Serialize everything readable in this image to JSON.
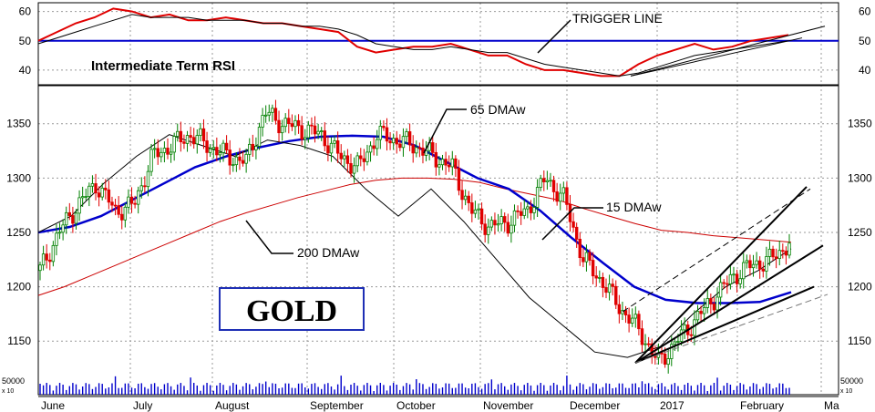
{
  "chart_data": [
    {
      "type": "line",
      "title": "Intermediate Term RSI",
      "ylim": [
        35,
        63
      ],
      "y_ticks": [
        "60",
        "50",
        "40"
      ],
      "reference_line": 50,
      "annotation": "TRIGGER LINE",
      "colors": {
        "rsi": "#e00000",
        "trigger": "#000000",
        "reference": "#0000cc"
      },
      "series": [
        {
          "name": "RSI",
          "key": "rsi",
          "values": [
            50,
            53,
            56,
            58,
            61,
            60,
            58,
            59,
            57,
            57,
            58,
            57,
            56,
            56,
            55,
            54,
            53,
            48,
            46,
            47,
            48,
            48,
            49,
            47,
            45,
            45,
            42,
            40,
            40,
            39,
            38,
            38,
            42,
            45,
            47,
            49,
            47,
            48,
            50,
            51,
            52
          ]
        },
        {
          "name": "TRIGGER LINE",
          "key": "trigger",
          "values": [
            49,
            51,
            53,
            55,
            57,
            59,
            58,
            58,
            58,
            57,
            57,
            57,
            56,
            56,
            55,
            55,
            54,
            52,
            49,
            48,
            47,
            47,
            48,
            47,
            46,
            46,
            44,
            42,
            41,
            40,
            39,
            38,
            39,
            41,
            43,
            45,
            46,
            47,
            48,
            49,
            50
          ]
        }
      ]
    },
    {
      "type": "candlestick",
      "title": "GOLD",
      "ylim": [
        1120,
        1385
      ],
      "y_ticks": [
        "1350",
        "1300",
        "1250",
        "1200",
        "1150"
      ],
      "x_ticks": [
        "June",
        "July",
        "August",
        "September",
        "October",
        "November",
        "December",
        "2017",
        "February",
        "Ma"
      ],
      "colors": {
        "up": "#008000",
        "down": "#e00000",
        "ma65": "#0000cc",
        "ma200": "#cc0000",
        "ma15": "#000000"
      },
      "annotations": [
        "65 DMAw",
        "15 DMAw",
        "200 DMAw"
      ],
      "closes": [
        1215,
        1250,
        1275,
        1295,
        1270,
        1275,
        1320,
        1330,
        1340,
        1330,
        1320,
        1315,
        1360,
        1350,
        1345,
        1340,
        1320,
        1310,
        1340,
        1335,
        1330,
        1320,
        1310,
        1270,
        1255,
        1260,
        1270,
        1300,
        1280,
        1225,
        1205,
        1180,
        1160,
        1130,
        1150,
        1170,
        1190,
        1210,
        1220,
        1225,
        1240
      ],
      "series": [
        {
          "name": "200 DMAw",
          "key": "ma200",
          "values": [
            1192,
            1200,
            1210,
            1220,
            1230,
            1240,
            1250,
            1260,
            1268,
            1275,
            1282,
            1288,
            1294,
            1298,
            1300,
            1300,
            1299,
            1296,
            1290,
            1285,
            1280,
            1272,
            1265,
            1258,
            1252,
            1250,
            1247,
            1245,
            1243,
            1241
          ]
        },
        {
          "name": "65 DMAw",
          "key": "ma65",
          "values": [
            1250,
            1255,
            1265,
            1280,
            1295,
            1310,
            1320,
            1328,
            1334,
            1338,
            1339,
            1338,
            1330,
            1315,
            1300,
            1290,
            1270,
            1245,
            1222,
            1200,
            1188,
            1185,
            1185,
            1186,
            1195
          ]
        },
        {
          "name": "15 DMAw",
          "key": "ma15",
          "values": [
            1250,
            1265,
            1295,
            1320,
            1340,
            1330,
            1320,
            1335,
            1330,
            1320,
            1290,
            1265,
            1290,
            1260,
            1225,
            1190,
            1165,
            1140,
            1135,
            1145,
            1175,
            1200,
            1215,
            1235
          ]
        }
      ]
    }
  ],
  "labels": {
    "rsi_title": "Intermediate Term RSI",
    "trigger_line": "TRIGGER LINE",
    "ma65": "65 DMAw",
    "ma15": "15 DMAw",
    "ma200": "200 DMAw",
    "gold": "GOLD",
    "volume_tick": "50000",
    "volume_unit": "x 10"
  }
}
